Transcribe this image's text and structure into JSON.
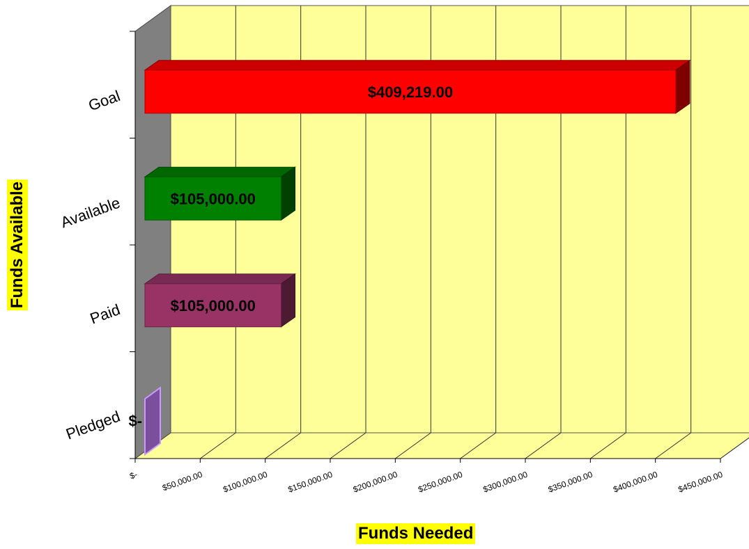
{
  "chart_data": {
    "type": "bar",
    "orientation": "horizontal",
    "style": "3d",
    "categories": [
      "Pledged",
      "Paid",
      "Available",
      "Goal"
    ],
    "values": [
      0,
      105000,
      105000,
      409219
    ],
    "data_labels": [
      "$-",
      "$105,000.00",
      "$105,000.00",
      "$409,219.00"
    ],
    "bar_colors": [
      "#7b4f9e",
      "#993366",
      "#008000",
      "#ff0000"
    ],
    "xlim": [
      0,
      450000
    ],
    "x_ticks": [
      "$-",
      "$50,000.00",
      "$100,000.00",
      "$150,000.00",
      "$200,000.00",
      "$250,000.00",
      "$300,000.00",
      "$350,000.00",
      "$400,000.00",
      "$450,000.00"
    ],
    "xlabel": "Funds Needed",
    "ylabel": "Funds Available",
    "grid": true,
    "colors": {
      "plot_wall": "#ffff99",
      "side_wall": "#808080",
      "title_highlight": "#ffff00"
    }
  }
}
